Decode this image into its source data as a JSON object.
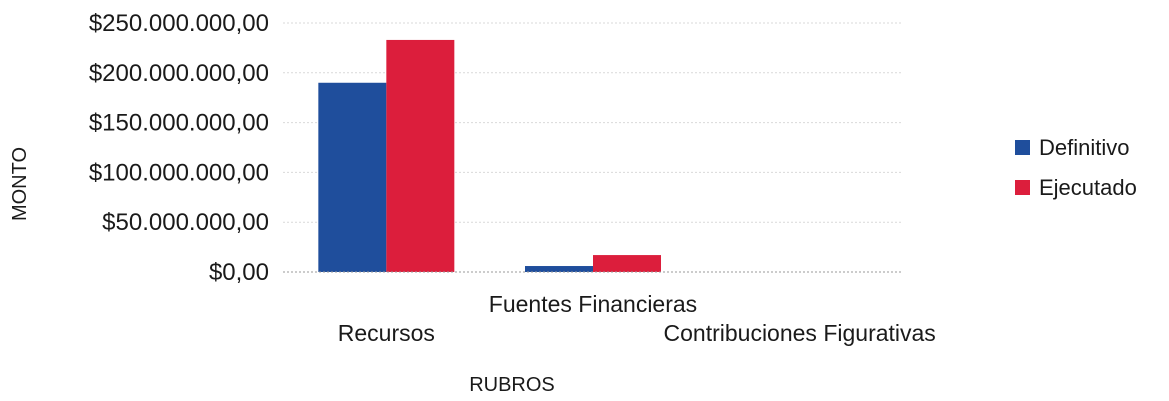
{
  "chart_data": {
    "type": "bar",
    "title": "",
    "xlabel": "RUBROS",
    "ylabel": "MONTO",
    "categories": [
      "Recursos",
      "Fuentes Financieras",
      "Contribuciones Figurativas"
    ],
    "series": [
      {
        "name": "Definitivo",
        "color": "#1f4e9c",
        "values": [
          190000000,
          6000000,
          0
        ]
      },
      {
        "name": "Ejecutado",
        "color": "#dc1e3c",
        "values": [
          233000000,
          17000000,
          0
        ]
      }
    ],
    "ylim": [
      0,
      250000000
    ],
    "yticks": [
      {
        "value": 0,
        "label": "$0,00"
      },
      {
        "value": 50000000,
        "label": "$50.000.000,00"
      },
      {
        "value": 100000000,
        "label": "$100.000.000,00"
      },
      {
        "value": 150000000,
        "label": "$150.000.000,00"
      },
      {
        "value": 200000000,
        "label": "$200.000.000,00"
      },
      {
        "value": 250000000,
        "label": "$250.000.000,00"
      }
    ],
    "grid": true,
    "legend": "right"
  }
}
